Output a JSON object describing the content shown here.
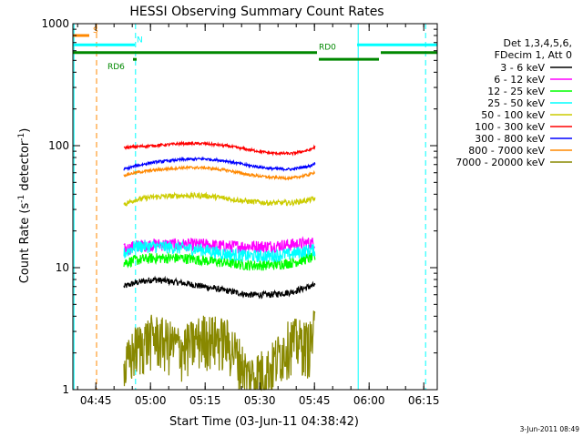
{
  "chart_data": {
    "type": "line",
    "title": "HESSI Observing Summary Count Rates",
    "xlabel": "Start Time (03-Jun-11 04:38:42)",
    "ylabel_main": "Count Rate (s",
    "ylabel_sup1": "-1",
    "ylabel_mid": " detector",
    "ylabel_sup2": "-1",
    "ylabel_end": ")",
    "x_unit": "minutes after 04:38:42",
    "xlim": [
      0,
      100
    ],
    "y_scale": "log",
    "ylim": [
      1,
      1000
    ],
    "x_ticks": [
      {
        "t": 6.3,
        "label": "04:45"
      },
      {
        "t": 21.3,
        "label": "05:00"
      },
      {
        "t": 36.3,
        "label": "05:15"
      },
      {
        "t": 51.3,
        "label": "05:30"
      },
      {
        "t": 66.3,
        "label": "05:45"
      },
      {
        "t": 81.3,
        "label": "06:00"
      },
      {
        "t": 96.3,
        "label": "06:15"
      }
    ],
    "y_ticks": [
      {
        "v": 1,
        "label": "1"
      },
      {
        "v": 10,
        "label": "10"
      },
      {
        "v": 100,
        "label": "100"
      },
      {
        "v": 1000,
        "label": "1000"
      }
    ],
    "legend_header": [
      "Det 1,3,4,5,6,",
      "FDecim 1, Att 0"
    ],
    "legend_position": "right",
    "series": [
      {
        "name": "3 - 6 keV",
        "color": "#000000",
        "x": [
          14,
          17,
          22,
          30,
          36,
          42,
          48,
          54,
          60,
          65,
          66.5
        ],
        "values": [
          7,
          7.5,
          8,
          7.5,
          7,
          6.5,
          6,
          6,
          6.3,
          7,
          7.2
        ]
      },
      {
        "name": "6 - 12 keV",
        "color": "#ff00ff",
        "x": [
          14,
          17,
          22,
          30,
          36,
          42,
          48,
          54,
          60,
          65,
          66.5
        ],
        "values": [
          14,
          15,
          15.5,
          15.5,
          15.5,
          15,
          15,
          15,
          15.5,
          16,
          16
        ]
      },
      {
        "name": "12 - 25 keV",
        "color": "#00ff00",
        "x": [
          14,
          17,
          22,
          30,
          36,
          42,
          48,
          54,
          60,
          65,
          66.5
        ],
        "values": [
          11,
          11.5,
          12,
          12,
          11.5,
          11,
          10.5,
          10.5,
          11,
          12,
          12
        ]
      },
      {
        "name": "25 - 50 keV",
        "color": "#00ffff",
        "x": [
          14,
          17,
          22,
          30,
          36,
          42,
          48,
          54,
          60,
          65,
          66.5
        ],
        "values": [
          13,
          15,
          15,
          14.5,
          14,
          13,
          12.5,
          12.5,
          13,
          14,
          14
        ]
      },
      {
        "name": "50 - 100 keV",
        "color": "#cccc00",
        "x": [
          14,
          17,
          22,
          30,
          36,
          42,
          48,
          54,
          60,
          65,
          66.5
        ],
        "values": [
          33,
          36,
          38,
          39,
          39,
          37,
          35,
          34,
          34,
          36,
          37
        ]
      },
      {
        "name": "100 - 300 keV",
        "color": "#ff0000",
        "x": [
          14,
          17,
          22,
          30,
          36,
          42,
          48,
          54,
          60,
          65,
          66.5
        ],
        "values": [
          96,
          98,
          100,
          104,
          104,
          100,
          93,
          87,
          86,
          92,
          98
        ]
      },
      {
        "name": "300 - 800 keV",
        "color": "#0000ff",
        "x": [
          14,
          17,
          22,
          30,
          36,
          42,
          48,
          54,
          60,
          65,
          66.5
        ],
        "values": [
          64,
          68,
          73,
          77,
          78,
          75,
          69,
          65,
          64,
          68,
          72
        ]
      },
      {
        "name": "800 - 7000 keV",
        "color": "#ff8800",
        "x": [
          14,
          17,
          22,
          30,
          36,
          42,
          48,
          54,
          60,
          65,
          66.5
        ],
        "values": [
          57,
          60,
          63,
          66,
          66,
          63,
          58,
          55,
          54,
          58,
          61
        ]
      },
      {
        "name": "7000 - 20000 keV",
        "color": "#888800",
        "x": [
          14,
          17,
          22,
          30,
          36,
          42,
          48,
          54,
          60,
          65,
          66.5
        ],
        "values": [
          1.4,
          2.2,
          2.8,
          2.2,
          2.8,
          2.6,
          1.3,
          1.5,
          2.6,
          2.4,
          3.2
        ]
      }
    ],
    "flag_bars": [
      {
        "label": "S",
        "color": "#ff8800",
        "y": 800,
        "segments": [
          [
            0,
            4.5
          ]
        ]
      },
      {
        "label": "N",
        "color": "#00ffff",
        "y": 670,
        "segments": [
          [
            0,
            17
          ],
          [
            78,
            100
          ]
        ]
      },
      {
        "label": "RD0",
        "color": "#008800",
        "y": 580,
        "segments": [
          [
            0,
            67
          ],
          [
            84.5,
            100
          ]
        ]
      },
      {
        "label": "RD6",
        "color": "#008800",
        "y": 510,
        "segments": [
          [
            16.5,
            17.5
          ],
          [
            67.5,
            84
          ]
        ]
      }
    ],
    "vertical_markers": [
      {
        "t": 6.5,
        "color": "#ff8800",
        "style": "dashed"
      },
      {
        "t": 17.2,
        "color": "#00ffff",
        "style": "dashed"
      },
      {
        "t": 78.3,
        "color": "#00ffff",
        "style": "solid"
      },
      {
        "t": 96.8,
        "color": "#00ffff",
        "style": "dashed"
      },
      {
        "t": 0.3,
        "color": "#00ffff",
        "style": "solid"
      }
    ],
    "grid": false
  },
  "footer": {
    "timestamp": "3-Jun-2011 08:49"
  }
}
